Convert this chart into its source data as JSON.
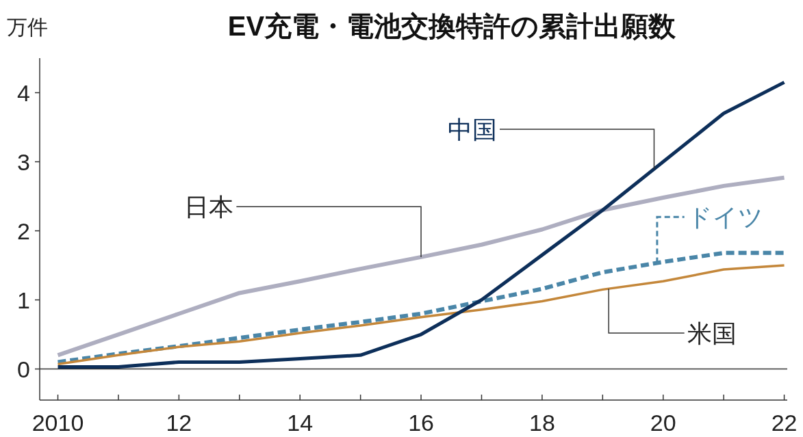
{
  "chart_data": {
    "type": "line",
    "title": "EV充電・電池交換特許の累計出願数",
    "ylabel": "万件",
    "x": [
      2010,
      2011,
      2012,
      2013,
      2014,
      2015,
      2016,
      2017,
      2018,
      2019,
      2020,
      2021,
      2022
    ],
    "series": [
      {
        "name": "日本",
        "color": "#aeaec0",
        "values": [
          0.2,
          0.5,
          0.8,
          1.1,
          1.27,
          1.45,
          1.62,
          1.8,
          2.02,
          2.3,
          2.48,
          2.65,
          2.77
        ]
      },
      {
        "name": "ドイツ",
        "color": "#4a86a8",
        "line_style": "dashed",
        "values": [
          0.1,
          0.22,
          0.33,
          0.45,
          0.57,
          0.68,
          0.8,
          0.98,
          1.16,
          1.4,
          1.55,
          1.68,
          1.68
        ]
      },
      {
        "name": "米国",
        "color": "#c4873a",
        "values": [
          0.07,
          0.2,
          0.32,
          0.4,
          0.52,
          0.63,
          0.75,
          0.86,
          0.98,
          1.15,
          1.27,
          1.44,
          1.5
        ]
      },
      {
        "name": "中国",
        "color": "#0d2f5a",
        "values": [
          0.03,
          0.03,
          0.1,
          0.1,
          0.15,
          0.2,
          0.5,
          1.0,
          1.65,
          2.3,
          3.0,
          3.7,
          4.15
        ]
      }
    ],
    "xlim": [
      2009.7,
      2022.05
    ],
    "xticks": [
      {
        "value": 2010,
        "label": "2010"
      },
      {
        "value": 2011,
        "label": null
      },
      {
        "value": 2012,
        "label": "12"
      },
      {
        "value": 2013,
        "label": null
      },
      {
        "value": 2014,
        "label": "14"
      },
      {
        "value": 2015,
        "label": null
      },
      {
        "value": 2016,
        "label": "16"
      },
      {
        "value": 2017,
        "label": null
      },
      {
        "value": 2018,
        "label": "18"
      },
      {
        "value": 2019,
        "label": null
      },
      {
        "value": 2020,
        "label": "20"
      },
      {
        "value": 2021,
        "label": null
      },
      {
        "value": 2022,
        "label": "22"
      }
    ],
    "ylim": [
      -0.45,
      4.5
    ],
    "yticks": [
      0,
      1,
      2,
      3,
      4
    ],
    "ref_lines": [
      {
        "axis": "y",
        "value": 0,
        "color": "#333333"
      }
    ]
  }
}
